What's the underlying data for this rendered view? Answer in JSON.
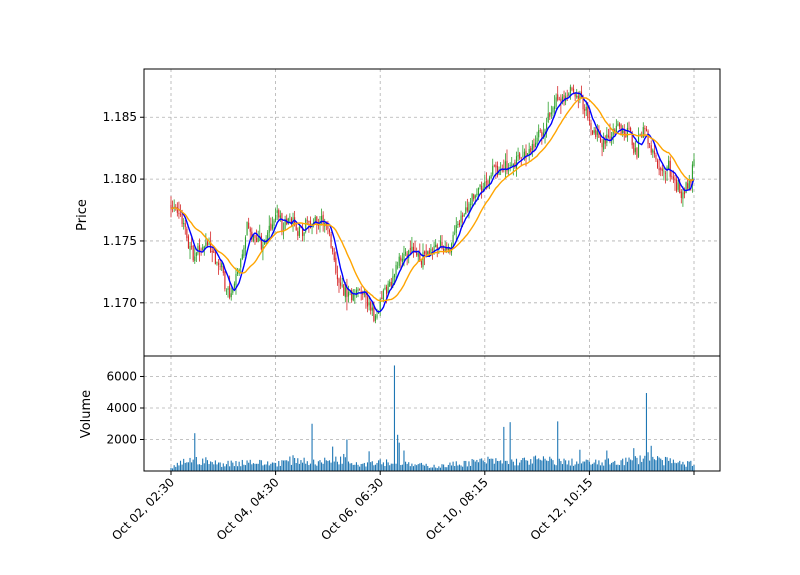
{
  "chart_data": [
    {
      "type": "candlestick",
      "title": "",
      "ylabel": "Price",
      "ylim": [
        1.1657,
        1.1889
      ],
      "yticks": [
        1.17,
        1.175,
        1.18,
        1.185
      ],
      "ytick_labels": [
        "1.170",
        "1.175",
        "1.180",
        "1.185"
      ],
      "xtick_labels": [
        "Oct 02, 02:30",
        "Oct 04, 04:30",
        "Oct 06, 06:30",
        "Oct 10, 08:15",
        "Oct 12, 10:15",
        ""
      ],
      "grid": true,
      "up_color": "#2ca02c",
      "down_color": "#d62728",
      "close_anchors": [
        [
          0,
          1.1778
        ],
        [
          5,
          1.1772
        ],
        [
          10,
          1.1752
        ],
        [
          14,
          1.1738
        ],
        [
          18,
          1.1745
        ],
        [
          24,
          1.1745
        ],
        [
          30,
          1.1732
        ],
        [
          34,
          1.1718
        ],
        [
          37,
          1.1705
        ],
        [
          40,
          1.1715
        ],
        [
          44,
          1.1735
        ],
        [
          48,
          1.1758
        ],
        [
          54,
          1.175
        ],
        [
          58,
          1.1745
        ],
        [
          62,
          1.176
        ],
        [
          66,
          1.177
        ],
        [
          70,
          1.1765
        ],
        [
          76,
          1.1768
        ],
        [
          80,
          1.176
        ],
        [
          86,
          1.1762
        ],
        [
          92,
          1.1762
        ],
        [
          96,
          1.1765
        ],
        [
          100,
          1.1755
        ],
        [
          104,
          1.1725
        ],
        [
          108,
          1.1712
        ],
        [
          112,
          1.1705
        ],
        [
          118,
          1.171
        ],
        [
          124,
          1.17
        ],
        [
          128,
          1.169
        ],
        [
          132,
          1.17
        ],
        [
          136,
          1.171
        ],
        [
          140,
          1.1725
        ],
        [
          146,
          1.1738
        ],
        [
          152,
          1.174
        ],
        [
          158,
          1.1735
        ],
        [
          164,
          1.1742
        ],
        [
          170,
          1.1748
        ],
        [
          176,
          1.1745
        ],
        [
          182,
          1.1765
        ],
        [
          188,
          1.1778
        ],
        [
          194,
          1.179
        ],
        [
          200,
          1.18
        ],
        [
          206,
          1.181
        ],
        [
          212,
          1.1808
        ],
        [
          218,
          1.1815
        ],
        [
          224,
          1.182
        ],
        [
          230,
          1.183
        ],
        [
          236,
          1.1845
        ],
        [
          242,
          1.1858
        ],
        [
          248,
          1.1865
        ],
        [
          254,
          1.1872
        ],
        [
          258,
          1.1868
        ],
        [
          262,
          1.1855
        ],
        [
          266,
          1.184
        ],
        [
          270,
          1.1835
        ],
        [
          274,
          1.183
        ],
        [
          278,
          1.1835
        ],
        [
          282,
          1.1842
        ],
        [
          286,
          1.184
        ],
        [
          290,
          1.1835
        ],
        [
          294,
          1.1822
        ],
        [
          298,
          1.1842
        ],
        [
          302,
          1.183
        ],
        [
          306,
          1.1815
        ],
        [
          310,
          1.1805
        ],
        [
          314,
          1.1808
        ],
        [
          318,
          1.18
        ],
        [
          322,
          1.1785
        ],
        [
          326,
          1.1795
        ],
        [
          330,
          1.181
        ]
      ],
      "ma_lines": [
        {
          "name": "",
          "color": "#0000ff",
          "window": 7
        },
        {
          "name": "",
          "color": "#ffa500",
          "window": 20
        }
      ]
    },
    {
      "type": "bar",
      "title": "",
      "ylabel": "Volume",
      "ylim": [
        0,
        7300
      ],
      "yticks": [
        2000,
        4000,
        6000
      ],
      "ytick_labels": [
        "2000",
        "4000",
        "6000"
      ],
      "grid": true,
      "color": "#1f77b4",
      "volume_anchors": [
        [
          0,
          150
        ],
        [
          10,
          700
        ],
        [
          20,
          650
        ],
        [
          30,
          450
        ],
        [
          40,
          500
        ],
        [
          50,
          600
        ],
        [
          60,
          450
        ],
        [
          70,
          550
        ],
        [
          80,
          750
        ],
        [
          90,
          500
        ],
        [
          100,
          650
        ],
        [
          110,
          800
        ],
        [
          120,
          450
        ],
        [
          130,
          650
        ],
        [
          140,
          500
        ],
        [
          150,
          400
        ],
        [
          160,
          350
        ],
        [
          170,
          300
        ],
        [
          180,
          450
        ],
        [
          190,
          550
        ],
        [
          200,
          650
        ],
        [
          210,
          550
        ],
        [
          220,
          600
        ],
        [
          230,
          700
        ],
        [
          240,
          650
        ],
        [
          250,
          550
        ],
        [
          260,
          550
        ],
        [
          270,
          500
        ],
        [
          280,
          600
        ],
        [
          290,
          650
        ],
        [
          300,
          900
        ],
        [
          310,
          650
        ],
        [
          320,
          500
        ],
        [
          330,
          450
        ]
      ],
      "volume_spikes": [
        [
          15,
          2400
        ],
        [
          89,
          3000
        ],
        [
          102,
          1550
        ],
        [
          111,
          2000
        ],
        [
          125,
          1250
        ],
        [
          141,
          6700
        ],
        [
          143,
          2300
        ],
        [
          144,
          1800
        ],
        [
          147,
          1300
        ],
        [
          210,
          2800
        ],
        [
          214,
          3100
        ],
        [
          244,
          3150
        ],
        [
          258,
          1350
        ],
        [
          275,
          1300
        ],
        [
          292,
          1450
        ],
        [
          300,
          4950
        ],
        [
          303,
          1600
        ]
      ]
    }
  ]
}
